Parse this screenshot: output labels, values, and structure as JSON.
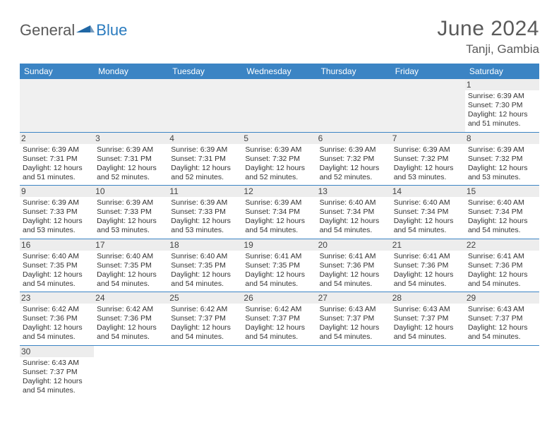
{
  "logo": {
    "text_general": "General",
    "text_blue": "Blue",
    "icon_color": "#2a7bbf"
  },
  "header": {
    "month_title": "June 2024",
    "location": "Tanji, Gambia"
  },
  "calendar": {
    "header_bg": "#3b84c4",
    "header_fg": "#ffffff",
    "border_color": "#3b84c4",
    "daynum_bg": "#ededed",
    "weekdays": [
      "Sunday",
      "Monday",
      "Tuesday",
      "Wednesday",
      "Thursday",
      "Friday",
      "Saturday"
    ],
    "weeks": [
      [
        null,
        null,
        null,
        null,
        null,
        null,
        {
          "day": "1",
          "sunrise": "Sunrise: 6:39 AM",
          "sunset": "Sunset: 7:30 PM",
          "daylight1": "Daylight: 12 hours",
          "daylight2": "and 51 minutes."
        }
      ],
      [
        {
          "day": "2",
          "sunrise": "Sunrise: 6:39 AM",
          "sunset": "Sunset: 7:31 PM",
          "daylight1": "Daylight: 12 hours",
          "daylight2": "and 51 minutes."
        },
        {
          "day": "3",
          "sunrise": "Sunrise: 6:39 AM",
          "sunset": "Sunset: 7:31 PM",
          "daylight1": "Daylight: 12 hours",
          "daylight2": "and 52 minutes."
        },
        {
          "day": "4",
          "sunrise": "Sunrise: 6:39 AM",
          "sunset": "Sunset: 7:31 PM",
          "daylight1": "Daylight: 12 hours",
          "daylight2": "and 52 minutes."
        },
        {
          "day": "5",
          "sunrise": "Sunrise: 6:39 AM",
          "sunset": "Sunset: 7:32 PM",
          "daylight1": "Daylight: 12 hours",
          "daylight2": "and 52 minutes."
        },
        {
          "day": "6",
          "sunrise": "Sunrise: 6:39 AM",
          "sunset": "Sunset: 7:32 PM",
          "daylight1": "Daylight: 12 hours",
          "daylight2": "and 52 minutes."
        },
        {
          "day": "7",
          "sunrise": "Sunrise: 6:39 AM",
          "sunset": "Sunset: 7:32 PM",
          "daylight1": "Daylight: 12 hours",
          "daylight2": "and 53 minutes."
        },
        {
          "day": "8",
          "sunrise": "Sunrise: 6:39 AM",
          "sunset": "Sunset: 7:32 PM",
          "daylight1": "Daylight: 12 hours",
          "daylight2": "and 53 minutes."
        }
      ],
      [
        {
          "day": "9",
          "sunrise": "Sunrise: 6:39 AM",
          "sunset": "Sunset: 7:33 PM",
          "daylight1": "Daylight: 12 hours",
          "daylight2": "and 53 minutes."
        },
        {
          "day": "10",
          "sunrise": "Sunrise: 6:39 AM",
          "sunset": "Sunset: 7:33 PM",
          "daylight1": "Daylight: 12 hours",
          "daylight2": "and 53 minutes."
        },
        {
          "day": "11",
          "sunrise": "Sunrise: 6:39 AM",
          "sunset": "Sunset: 7:33 PM",
          "daylight1": "Daylight: 12 hours",
          "daylight2": "and 53 minutes."
        },
        {
          "day": "12",
          "sunrise": "Sunrise: 6:39 AM",
          "sunset": "Sunset: 7:34 PM",
          "daylight1": "Daylight: 12 hours",
          "daylight2": "and 54 minutes."
        },
        {
          "day": "13",
          "sunrise": "Sunrise: 6:40 AM",
          "sunset": "Sunset: 7:34 PM",
          "daylight1": "Daylight: 12 hours",
          "daylight2": "and 54 minutes."
        },
        {
          "day": "14",
          "sunrise": "Sunrise: 6:40 AM",
          "sunset": "Sunset: 7:34 PM",
          "daylight1": "Daylight: 12 hours",
          "daylight2": "and 54 minutes."
        },
        {
          "day": "15",
          "sunrise": "Sunrise: 6:40 AM",
          "sunset": "Sunset: 7:34 PM",
          "daylight1": "Daylight: 12 hours",
          "daylight2": "and 54 minutes."
        }
      ],
      [
        {
          "day": "16",
          "sunrise": "Sunrise: 6:40 AM",
          "sunset": "Sunset: 7:35 PM",
          "daylight1": "Daylight: 12 hours",
          "daylight2": "and 54 minutes."
        },
        {
          "day": "17",
          "sunrise": "Sunrise: 6:40 AM",
          "sunset": "Sunset: 7:35 PM",
          "daylight1": "Daylight: 12 hours",
          "daylight2": "and 54 minutes."
        },
        {
          "day": "18",
          "sunrise": "Sunrise: 6:40 AM",
          "sunset": "Sunset: 7:35 PM",
          "daylight1": "Daylight: 12 hours",
          "daylight2": "and 54 minutes."
        },
        {
          "day": "19",
          "sunrise": "Sunrise: 6:41 AM",
          "sunset": "Sunset: 7:35 PM",
          "daylight1": "Daylight: 12 hours",
          "daylight2": "and 54 minutes."
        },
        {
          "day": "20",
          "sunrise": "Sunrise: 6:41 AM",
          "sunset": "Sunset: 7:36 PM",
          "daylight1": "Daylight: 12 hours",
          "daylight2": "and 54 minutes."
        },
        {
          "day": "21",
          "sunrise": "Sunrise: 6:41 AM",
          "sunset": "Sunset: 7:36 PM",
          "daylight1": "Daylight: 12 hours",
          "daylight2": "and 54 minutes."
        },
        {
          "day": "22",
          "sunrise": "Sunrise: 6:41 AM",
          "sunset": "Sunset: 7:36 PM",
          "daylight1": "Daylight: 12 hours",
          "daylight2": "and 54 minutes."
        }
      ],
      [
        {
          "day": "23",
          "sunrise": "Sunrise: 6:42 AM",
          "sunset": "Sunset: 7:36 PM",
          "daylight1": "Daylight: 12 hours",
          "daylight2": "and 54 minutes."
        },
        {
          "day": "24",
          "sunrise": "Sunrise: 6:42 AM",
          "sunset": "Sunset: 7:36 PM",
          "daylight1": "Daylight: 12 hours",
          "daylight2": "and 54 minutes."
        },
        {
          "day": "25",
          "sunrise": "Sunrise: 6:42 AM",
          "sunset": "Sunset: 7:37 PM",
          "daylight1": "Daylight: 12 hours",
          "daylight2": "and 54 minutes."
        },
        {
          "day": "26",
          "sunrise": "Sunrise: 6:42 AM",
          "sunset": "Sunset: 7:37 PM",
          "daylight1": "Daylight: 12 hours",
          "daylight2": "and 54 minutes."
        },
        {
          "day": "27",
          "sunrise": "Sunrise: 6:43 AM",
          "sunset": "Sunset: 7:37 PM",
          "daylight1": "Daylight: 12 hours",
          "daylight2": "and 54 minutes."
        },
        {
          "day": "28",
          "sunrise": "Sunrise: 6:43 AM",
          "sunset": "Sunset: 7:37 PM",
          "daylight1": "Daylight: 12 hours",
          "daylight2": "and 54 minutes."
        },
        {
          "day": "29",
          "sunrise": "Sunrise: 6:43 AM",
          "sunset": "Sunset: 7:37 PM",
          "daylight1": "Daylight: 12 hours",
          "daylight2": "and 54 minutes."
        }
      ],
      [
        {
          "day": "30",
          "sunrise": "Sunrise: 6:43 AM",
          "sunset": "Sunset: 7:37 PM",
          "daylight1": "Daylight: 12 hours",
          "daylight2": "and 54 minutes."
        },
        null,
        null,
        null,
        null,
        null,
        null
      ]
    ]
  }
}
